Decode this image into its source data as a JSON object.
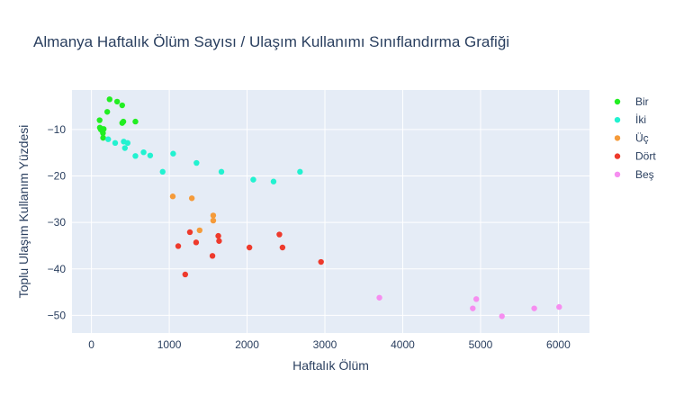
{
  "chart_data": {
    "type": "scatter",
    "title": "Almanya Haftalık Ölüm Sayısı / Ulaşım Kullanımı Sınıflandırma Grafiği",
    "xlabel": "Haftalık Ölüm",
    "ylabel": "Toplu Ulaşım Kullanım Yüzdesi",
    "xlim": [
      -250,
      6400
    ],
    "ylim": [
      -53.8,
      -1.5
    ],
    "xticks": [
      0,
      1000,
      2000,
      3000,
      4000,
      5000,
      6000
    ],
    "yticks": [
      -10,
      -20,
      -30,
      -40,
      -50
    ],
    "grid": true,
    "legend_position": "right",
    "series": [
      {
        "name": "Bir",
        "color": "#22ee22",
        "points": [
          {
            "x": 233,
            "y": -3.5
          },
          {
            "x": 330,
            "y": -4.0
          },
          {
            "x": 395,
            "y": -4.8
          },
          {
            "x": 203,
            "y": -6.2
          },
          {
            "x": 105,
            "y": -8.0
          },
          {
            "x": 410,
            "y": -8.3
          },
          {
            "x": 395,
            "y": -8.6
          },
          {
            "x": 565,
            "y": -8.3
          },
          {
            "x": 108,
            "y": -9.6
          },
          {
            "x": 135,
            "y": -9.9
          },
          {
            "x": 158,
            "y": -9.9
          },
          {
            "x": 140,
            "y": -10.3
          },
          {
            "x": 148,
            "y": -10.8
          },
          {
            "x": 150,
            "y": -11.8
          },
          {
            "x": 120,
            "y": -10.0
          }
        ]
      },
      {
        "name": "İki",
        "color": "#22f2d0",
        "points": [
          {
            "x": 215,
            "y": -12.1
          },
          {
            "x": 305,
            "y": -12.9
          },
          {
            "x": 415,
            "y": -12.6
          },
          {
            "x": 465,
            "y": -12.9
          },
          {
            "x": 430,
            "y": -14.0
          },
          {
            "x": 670,
            "y": -14.9
          },
          {
            "x": 565,
            "y": -15.7
          },
          {
            "x": 755,
            "y": -15.6
          },
          {
            "x": 1050,
            "y": -15.2
          },
          {
            "x": 1350,
            "y": -17.2
          },
          {
            "x": 915,
            "y": -19.1
          },
          {
            "x": 1670,
            "y": -19.1
          },
          {
            "x": 2680,
            "y": -19.1
          },
          {
            "x": 2080,
            "y": -20.8
          },
          {
            "x": 2340,
            "y": -21.2
          }
        ]
      },
      {
        "name": "Üç",
        "color": "#f59b3a",
        "points": [
          {
            "x": 1045,
            "y": -24.4
          },
          {
            "x": 1290,
            "y": -24.8
          },
          {
            "x": 1565,
            "y": -28.5
          },
          {
            "x": 1565,
            "y": -29.6
          },
          {
            "x": 1390,
            "y": -31.7
          }
        ]
      },
      {
        "name": "Dört",
        "color": "#ee3a2c",
        "points": [
          {
            "x": 1265,
            "y": -32.1
          },
          {
            "x": 1630,
            "y": -32.9
          },
          {
            "x": 1640,
            "y": -34.0
          },
          {
            "x": 1345,
            "y": -34.3
          },
          {
            "x": 1115,
            "y": -35.1
          },
          {
            "x": 2030,
            "y": -35.4
          },
          {
            "x": 2415,
            "y": -32.6
          },
          {
            "x": 2455,
            "y": -35.4
          },
          {
            "x": 1555,
            "y": -37.2
          },
          {
            "x": 2950,
            "y": -38.5
          },
          {
            "x": 1205,
            "y": -41.2
          }
        ]
      },
      {
        "name": "Beş",
        "color": "#f68ef0",
        "points": [
          {
            "x": 3700,
            "y": -46.2
          },
          {
            "x": 4945,
            "y": -46.5
          },
          {
            "x": 4900,
            "y": -48.5
          },
          {
            "x": 5690,
            "y": -48.5
          },
          {
            "x": 6010,
            "y": -48.2
          },
          {
            "x": 5275,
            "y": -50.2
          }
        ]
      }
    ]
  }
}
